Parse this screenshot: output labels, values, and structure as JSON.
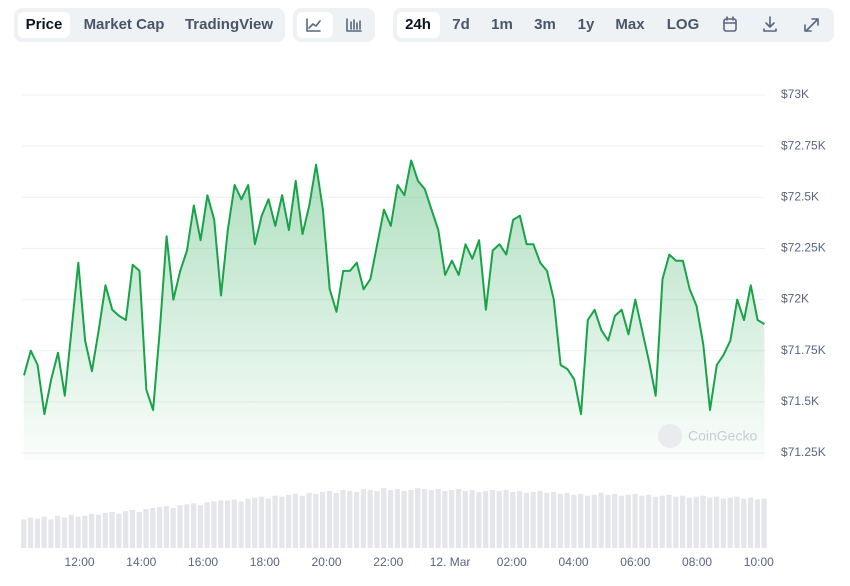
{
  "toolbar": {
    "views": [
      "Price",
      "Market Cap",
      "TradingView"
    ],
    "ranges": [
      "24h",
      "7d",
      "1m",
      "3m",
      "1y",
      "Max",
      "LOG"
    ]
  },
  "watermark": "CoinGecko",
  "chart_data": {
    "type": "line",
    "x": [
      10.2,
      10.42,
      10.64,
      10.86,
      11.08,
      11.3,
      11.52,
      11.74,
      11.96,
      12.18,
      12.4,
      12.62,
      12.84,
      13.06,
      13.28,
      13.5,
      13.72,
      13.94,
      14.16,
      14.38,
      14.6,
      14.82,
      15.04,
      15.26,
      15.48,
      15.7,
      15.92,
      16.14,
      16.36,
      16.58,
      16.8,
      17.02,
      17.24,
      17.46,
      17.68,
      17.9,
      18.12,
      18.34,
      18.56,
      18.78,
      19,
      19.22,
      19.44,
      19.66,
      19.88,
      20.1,
      20.32,
      20.54,
      20.76,
      20.98,
      21.2,
      21.42,
      21.64,
      21.86,
      22.08,
      22.3,
      22.52,
      22.74,
      22.96,
      23.18,
      23.4,
      23.62,
      23.84,
      24.06,
      24.28,
      24.5,
      24.72,
      24.94,
      25.16,
      25.38,
      25.6,
      25.82,
      26.04,
      26.26,
      26.48,
      26.7,
      26.92,
      27.14,
      27.36,
      27.58,
      27.8,
      28.02,
      28.24,
      28.46,
      28.68,
      28.9,
      29.12,
      29.34,
      29.56,
      29.78,
      30,
      30.22,
      30.44,
      30.66,
      30.88,
      31.1,
      31.32,
      31.54,
      31.76,
      31.98,
      32.2,
      32.42,
      32.64,
      32.86,
      33.08,
      33.3,
      33.52,
      33.74,
      33.96,
      34.18
    ],
    "series": [
      {
        "name": "Price",
        "color": "#18a348",
        "values": [
          71.63,
          71.75,
          71.68,
          71.44,
          71.61,
          71.74,
          71.53,
          71.85,
          72.18,
          71.8,
          71.65,
          71.85,
          72.07,
          71.95,
          71.92,
          71.9,
          72.17,
          72.14,
          71.56,
          71.46,
          71.85,
          72.31,
          72.0,
          72.14,
          72.24,
          72.46,
          72.29,
          72.51,
          72.39,
          72.02,
          72.34,
          72.56,
          72.49,
          72.56,
          72.27,
          72.41,
          72.49,
          72.36,
          72.51,
          72.34,
          72.58,
          72.32,
          72.46,
          72.66,
          72.44,
          72.05,
          71.94,
          72.14,
          72.14,
          72.18,
          72.05,
          72.1,
          72.27,
          72.44,
          72.36,
          72.56,
          72.51,
          72.68,
          72.58,
          72.54,
          72.44,
          72.34,
          72.12,
          72.19,
          72.12,
          72.27,
          72.2,
          72.29,
          71.95,
          72.24,
          72.27,
          72.22,
          72.39,
          72.41,
          72.27,
          72.27,
          72.18,
          72.14,
          72.0,
          71.68,
          71.66,
          71.61,
          71.44,
          71.9,
          71.95,
          71.85,
          71.8,
          71.92,
          71.95,
          71.83,
          72.0,
          71.85,
          71.7,
          71.53,
          72.1,
          72.22,
          72.19,
          72.19,
          72.05,
          71.97,
          71.78,
          71.46,
          71.68,
          71.73,
          71.8,
          72.0,
          71.9,
          72.07,
          71.9,
          71.88
        ]
      }
    ],
    "volume": {
      "color": "#e4e6ea",
      "ylim": [
        0,
        100
      ],
      "values": [
        30,
        32,
        31,
        33,
        30,
        34,
        32,
        35,
        33,
        34,
        36,
        35,
        37,
        38,
        36,
        39,
        40,
        38,
        41,
        42,
        43,
        44,
        42,
        45,
        46,
        47,
        45,
        48,
        49,
        50,
        50,
        51,
        49,
        52,
        53,
        54,
        52,
        55,
        54,
        56,
        57,
        55,
        58,
        57,
        59,
        60,
        58,
        61,
        60,
        59,
        62,
        61,
        60,
        63,
        61,
        62,
        60,
        61,
        63,
        62,
        61,
        62,
        60,
        61,
        62,
        60,
        61,
        59,
        60,
        61,
        60,
        61,
        59,
        60,
        58,
        59,
        60,
        58,
        59,
        57,
        58,
        56,
        57,
        55,
        56,
        58,
        56,
        57,
        55,
        56,
        57,
        55,
        56,
        54,
        55,
        56,
        54,
        55,
        53,
        54,
        55,
        53,
        54,
        52,
        53,
        54,
        52,
        53,
        51,
        52
      ]
    },
    "xlim": [
      10.2,
      34.2
    ],
    "xticks": [
      {
        "value": 12,
        "label": "12:00"
      },
      {
        "value": 14,
        "label": "14:00"
      },
      {
        "value": 16,
        "label": "16:00"
      },
      {
        "value": 18,
        "label": "18:00"
      },
      {
        "value": 20,
        "label": "20:00"
      },
      {
        "value": 22,
        "label": "22:00"
      },
      {
        "value": 24,
        "label": "12. Mar"
      },
      {
        "value": 26,
        "label": "02:00"
      },
      {
        "value": 28,
        "label": "04:00"
      },
      {
        "value": 30,
        "label": "06:00"
      },
      {
        "value": 32,
        "label": "08:00"
      },
      {
        "value": 34,
        "label": "10:00"
      }
    ],
    "ylim": [
      71.25,
      73
    ],
    "yticks": [
      {
        "value": 71.25,
        "label": "$71.25K"
      },
      {
        "value": 71.5,
        "label": "$71.5K"
      },
      {
        "value": 71.75,
        "label": "$71.75K"
      },
      {
        "value": 72,
        "label": "$72K"
      },
      {
        "value": 72.25,
        "label": "$72.25K"
      },
      {
        "value": 72.5,
        "label": "$72.5K"
      },
      {
        "value": 72.75,
        "label": "$72.75K"
      },
      {
        "value": 73,
        "label": "$73K"
      }
    ],
    "grid": true
  }
}
